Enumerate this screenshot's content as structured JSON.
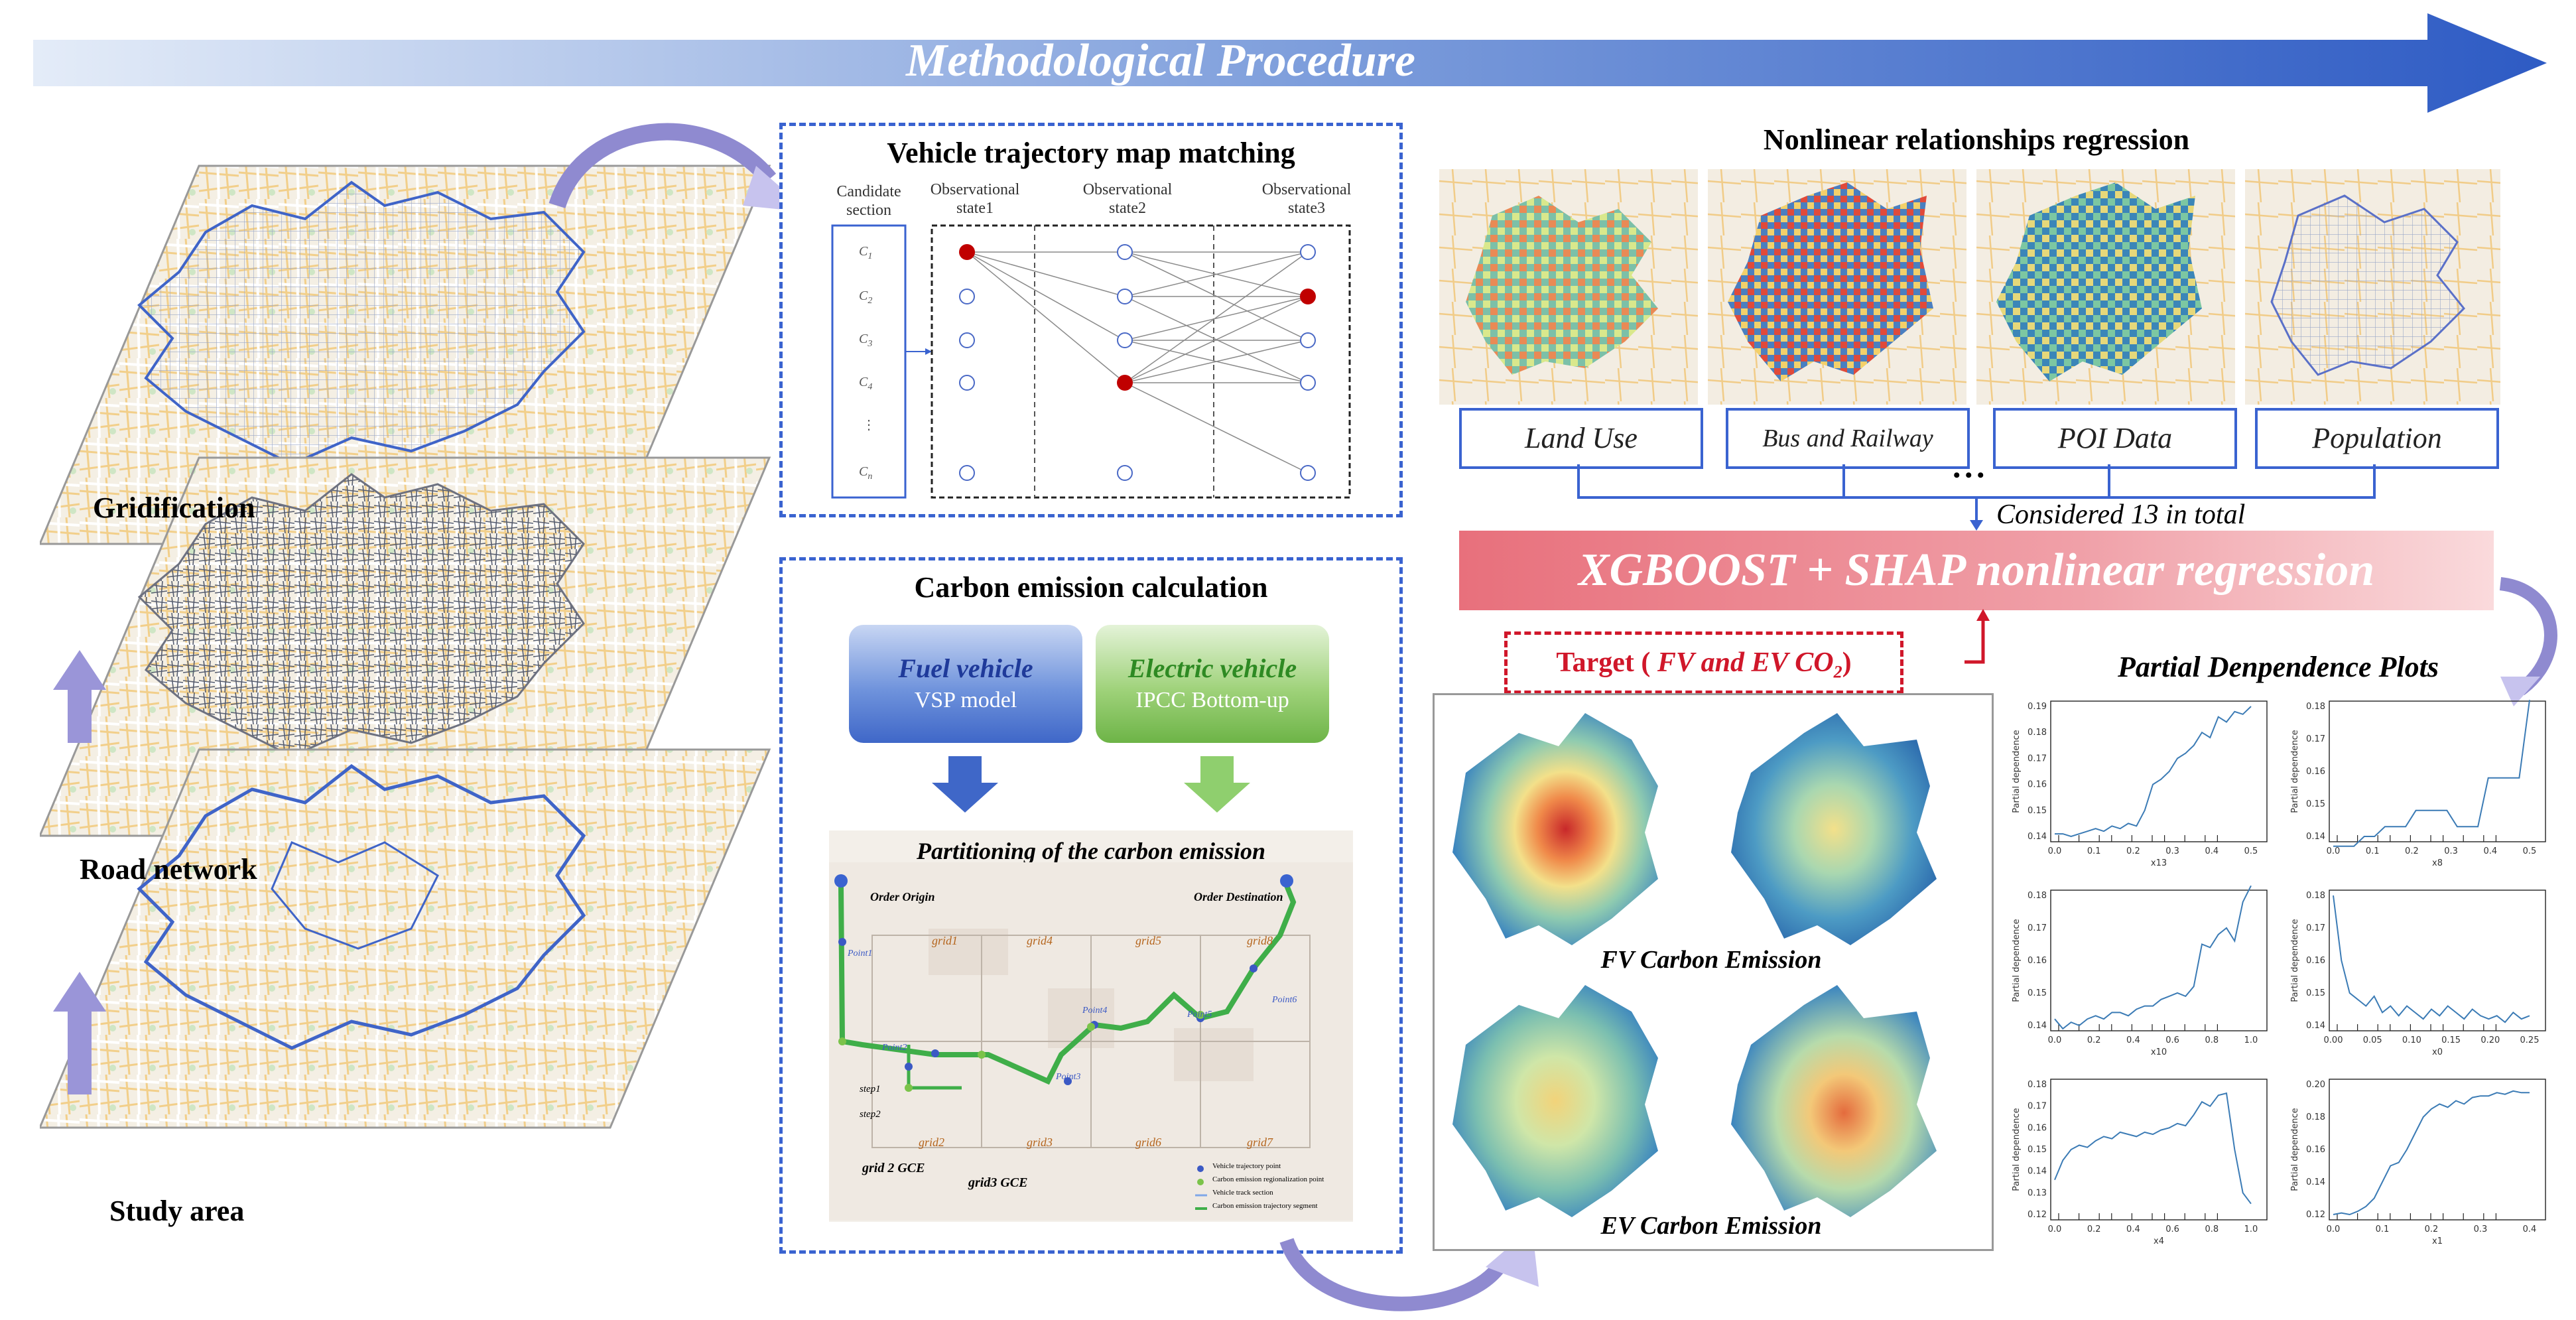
{
  "banner": {
    "title": "Methodological Procedure"
  },
  "layers": {
    "gridification": "Gridification",
    "road_network": "Road network",
    "study_area": "Study area"
  },
  "map_matching": {
    "title": "Vehicle trajectory map matching",
    "candidate_label": [
      "Candidate",
      "section"
    ],
    "states": [
      [
        "Observational",
        "state1"
      ],
      [
        "Observational",
        "state2"
      ],
      [
        "Observational",
        "state3"
      ]
    ],
    "candidates": [
      "C",
      "C",
      "C",
      "C",
      "⋮",
      "C"
    ],
    "candidate_subs": [
      "1",
      "2",
      "3",
      "4",
      "",
      "n"
    ]
  },
  "carbon": {
    "title": "Carbon emission calculation",
    "fuel_title": "Fuel vehicle",
    "fuel_sub": "VSP model",
    "electric_title": "Electric vehicle",
    "electric_sub": "IPCC Bottom-up",
    "partition_title": "Partitioning of the carbon emission",
    "order_origin": "Order Origin",
    "order_destination": "Order Destination",
    "grids": [
      "grid1",
      "grid4",
      "grid5",
      "grid8",
      "grid2",
      "grid3",
      "grid6",
      "grid7"
    ],
    "points": [
      "Point1",
      "Point2",
      "Point3",
      "Point4",
      "Point5",
      "Point6"
    ],
    "steps": [
      "step1",
      "step2"
    ],
    "gce_labels": [
      "grid 2 GCE",
      "grid3 GCE"
    ],
    "legend": [
      "Vehicle trajectory point",
      "Carbon emission regionalization point",
      "Vehicle track section",
      "Carbon emission trajectory segment"
    ]
  },
  "regression": {
    "title": "Nonlinear relationships regression",
    "variables": [
      "Land Use",
      "Bus and Railway",
      "POI Data",
      "Population"
    ],
    "ellipsis": "• • •",
    "considered": "Considered 13 in total",
    "xgb": "XGBOOST + SHAP nonlinear regression",
    "target_prefix": "Target ( ",
    "target_italic": "FV and EV CO",
    "target_sub": "2",
    "target_suffix": ")",
    "fv_label": "FV Carbon Emission",
    "ev_label": "EV Carbon Emission"
  },
  "pdp": {
    "title": "Partial Denpendence Plots",
    "ylabel": "Partial dependence",
    "plots": [
      {
        "xlabel": "x13",
        "yticks": [
          "0.19",
          "0.18",
          "0.17",
          "0.16",
          "0.15",
          "0.14"
        ],
        "xticks": [
          "0.0",
          "0.1",
          "0.2",
          "0.3",
          "0.4",
          "0.5"
        ],
        "values": [
          0.141,
          0.141,
          0.14,
          0.141,
          0.142,
          0.143,
          0.142,
          0.144,
          0.143,
          0.145,
          0.144,
          0.15,
          0.16,
          0.162,
          0.165,
          0.17,
          0.172,
          0.175,
          0.18,
          0.178,
          0.186,
          0.184,
          0.188,
          0.187,
          0.19
        ]
      },
      {
        "xlabel": "x8",
        "yticks": [
          "0.18",
          "0.17",
          "0.16",
          "0.15",
          "0.14"
        ],
        "xticks": [
          "0.0",
          "0.1",
          "0.2",
          "0.3",
          "0.4",
          "0.5"
        ],
        "values": [
          0.137,
          0.137,
          0.137,
          0.14,
          0.14,
          0.143,
          0.143,
          0.143,
          0.148,
          0.148,
          0.148,
          0.148,
          0.143,
          0.143,
          0.143,
          0.158,
          0.158,
          0.158,
          0.158,
          0.182
        ]
      },
      {
        "xlabel": "x10",
        "yticks": [
          "0.18",
          "0.17",
          "0.16",
          "0.15",
          "0.14"
        ],
        "xticks": [
          "0.0",
          "0.2",
          "0.4",
          "0.6",
          "0.8",
          "1.0"
        ],
        "values": [
          0.142,
          0.139,
          0.141,
          0.14,
          0.142,
          0.143,
          0.142,
          0.144,
          0.144,
          0.143,
          0.145,
          0.146,
          0.146,
          0.148,
          0.149,
          0.15,
          0.149,
          0.152,
          0.165,
          0.164,
          0.168,
          0.17,
          0.166,
          0.178,
          0.183
        ]
      },
      {
        "xlabel": "x0",
        "yticks": [
          "0.18",
          "0.17",
          "0.16",
          "0.15",
          "0.14"
        ],
        "xticks": [
          "0.00",
          "0.05",
          "0.10",
          "0.15",
          "0.20",
          "0.25"
        ],
        "values": [
          0.18,
          0.16,
          0.15,
          0.148,
          0.146,
          0.149,
          0.144,
          0.146,
          0.143,
          0.146,
          0.144,
          0.142,
          0.145,
          0.143,
          0.146,
          0.144,
          0.142,
          0.145,
          0.143,
          0.142,
          0.143,
          0.141,
          0.144,
          0.142,
          0.143
        ]
      },
      {
        "xlabel": "x4",
        "yticks": [
          "0.18",
          "0.17",
          "0.16",
          "0.15",
          "0.14",
          "0.13",
          "0.12"
        ],
        "xticks": [
          "0.0",
          "0.2",
          "0.4",
          "0.6",
          "0.8",
          "1.0"
        ],
        "values": [
          0.136,
          0.145,
          0.15,
          0.152,
          0.151,
          0.154,
          0.156,
          0.155,
          0.158,
          0.157,
          0.156,
          0.158,
          0.157,
          0.159,
          0.16,
          0.162,
          0.161,
          0.166,
          0.172,
          0.17,
          0.175,
          0.176,
          0.15,
          0.13,
          0.125
        ]
      },
      {
        "xlabel": "x1",
        "yticks": [
          "0.20",
          "0.18",
          "0.16",
          "0.14",
          "0.12"
        ],
        "xticks": [
          "0.0",
          "0.1",
          "0.2",
          "0.3",
          "0.4"
        ],
        "values": [
          0.12,
          0.121,
          0.12,
          0.122,
          0.125,
          0.13,
          0.14,
          0.15,
          0.152,
          0.16,
          0.17,
          0.18,
          0.185,
          0.188,
          0.186,
          0.19,
          0.188,
          0.192,
          0.193,
          0.193,
          0.195,
          0.194,
          0.196,
          0.195,
          0.195
        ]
      }
    ]
  },
  "colors": {
    "blue_border": "#3a63d0",
    "red_target": "#d0172a",
    "fuel_green": "#3fae49"
  }
}
